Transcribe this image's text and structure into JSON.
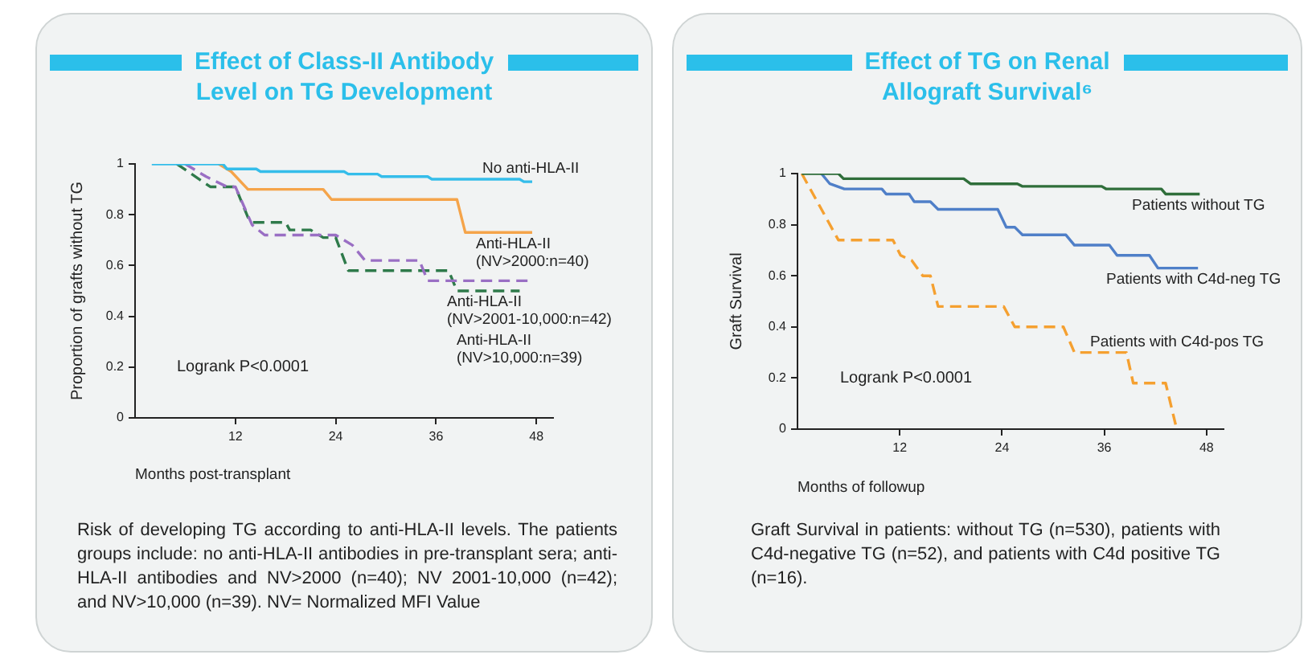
{
  "chart_data": [
    {
      "type": "line",
      "title": "Effect of Class-II Antibody Level on TG Development",
      "xlabel": "Months post-transplant",
      "ylabel": "Proportion of grafts without TG",
      "xlim": [
        0,
        50
      ],
      "xticks": [
        12,
        24,
        36,
        48
      ],
      "ylim": [
        0,
        1
      ],
      "yticks": [
        0,
        0.2,
        0.4,
        0.6,
        0.8,
        1
      ],
      "series": [
        {
          "name": "No anti-HLA-II",
          "color": "#35bdea",
          "x": [
            2,
            10.5,
            11,
            14.5,
            15,
            25,
            25.5,
            29,
            29.5,
            35,
            35.5,
            46,
            46.5,
            47.5
          ],
          "values": [
            1,
            1,
            0.98,
            0.98,
            0.97,
            0.97,
            0.96,
            0.96,
            0.95,
            0.95,
            0.94,
            0.94,
            0.93,
            0.93
          ]
        },
        {
          "name": "Anti-HLA-II (NV>2000:n=40)",
          "color": "#f5a44a",
          "x": [
            10,
            11.5,
            13.5,
            22.5,
            23.5,
            38.5,
            39.5,
            47.5
          ],
          "values": [
            1,
            0.97,
            0.9,
            0.9,
            0.86,
            0.86,
            0.73,
            0.73
          ]
        },
        {
          "name": "Anti-HLA-II (NV>2001-10,000:n=42)",
          "color": "#9a6fc4",
          "line_style": "dashed",
          "x": [
            6,
            8.5,
            11,
            12,
            14,
            15.5,
            24,
            26,
            27.5,
            34,
            35,
            47
          ],
          "values": [
            1,
            0.95,
            0.91,
            0.91,
            0.76,
            0.72,
            0.72,
            0.68,
            0.62,
            0.62,
            0.54,
            0.54
          ]
        },
        {
          "name": "Anti-HLA-II (NV>10,000:n=39)",
          "color": "#2e7a4a",
          "line_style": "dashed",
          "x": [
            5,
            9,
            12,
            13.5,
            14,
            18,
            18.5,
            21,
            22.5,
            24,
            25.5,
            37.5,
            38.5,
            46
          ],
          "values": [
            1,
            0.91,
            0.91,
            0.79,
            0.77,
            0.77,
            0.74,
            0.74,
            0.71,
            0.71,
            0.58,
            0.58,
            0.5,
            0.5
          ]
        }
      ],
      "annotations": [
        "Logrank P<0.0001",
        "Risk of developing TG according to anti-HLA-II levels. The patients groups include: no anti-HLA-II antibodies in pre-transplant sera; anti-HLA-II antibodies and NV>2000 (n=40); NV 2001-10,000 (n=42); and NV>10,000 (n=39). NV= Normalized MFI Value"
      ]
    },
    {
      "type": "line",
      "title": "Effect of TG on Renal Allograft Survival⁶",
      "xlabel": "Months of followup",
      "ylabel": "Graft Survival",
      "xlim": [
        0,
        50
      ],
      "xticks": [
        12,
        24,
        36,
        48
      ],
      "ylim": [
        0,
        1
      ],
      "yticks": [
        0,
        0.2,
        0.4,
        0.6,
        0.8,
        1
      ],
      "series": [
        {
          "name": "Patients without TG",
          "color": "#2f6e3a",
          "x": [
            0.5,
            4.8,
            5.4,
            19.5,
            20.3,
            25.8,
            26.4,
            35.7,
            36.2,
            42.7,
            43.2,
            47.2
          ],
          "values": [
            1,
            1,
            0.98,
            0.98,
            0.96,
            0.96,
            0.95,
            0.95,
            0.94,
            0.94,
            0.92,
            0.92
          ]
        },
        {
          "name": "Patients with C4d-neg TG",
          "color": "#4f7fc8",
          "x": [
            2.8,
            3.8,
            5.5,
            9.9,
            10.4,
            13.1,
            13.7,
            15.6,
            16.5,
            23.5,
            24.5,
            25.5,
            26.4,
            31.5,
            32.5,
            36.6,
            37.5,
            41.3,
            42.3,
            47
          ],
          "values": [
            1,
            0.96,
            0.94,
            0.94,
            0.92,
            0.92,
            0.89,
            0.89,
            0.86,
            0.86,
            0.79,
            0.79,
            0.76,
            0.76,
            0.72,
            0.72,
            0.68,
            0.68,
            0.63,
            0.63
          ]
        },
        {
          "name": "Patients with C4d-pos TG",
          "color": "#f5a030",
          "line_style": "dashed",
          "x": [
            0.5,
            4.8,
            11.2,
            12.1,
            13.4,
            14.7,
            15.6,
            16.5,
            24.2,
            25.5,
            31.2,
            32.5,
            38.6,
            39.4,
            43.2,
            44.5
          ],
          "values": [
            1,
            0.74,
            0.74,
            0.68,
            0.66,
            0.6,
            0.6,
            0.48,
            0.48,
            0.4,
            0.4,
            0.3,
            0.3,
            0.18,
            0.18,
            0
          ]
        }
      ],
      "annotations": [
        "Logrank P<0.0001",
        "Graft Survival in patients: without TG (n=530), patients with C4d-negative TG (n=52), and patients with C4d positive TG (n=16)."
      ]
    }
  ]
}
